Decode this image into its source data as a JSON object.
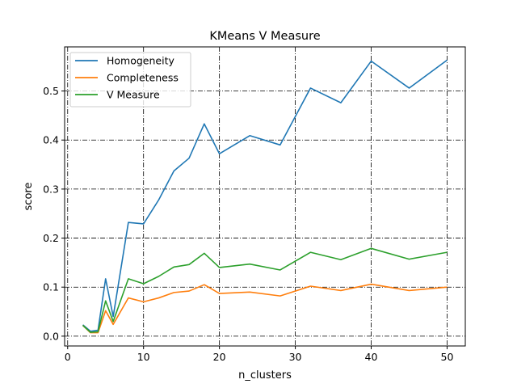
{
  "chart_data": {
    "type": "line",
    "title": "KMeans V Measure",
    "xlabel": "n_clusters",
    "ylabel": "score",
    "xlim": [
      -0.4,
      52.4
    ],
    "ylim": [
      -0.02,
      0.59
    ],
    "xticks": [
      0,
      10,
      20,
      30,
      40,
      50
    ],
    "yticks": [
      0.0,
      0.1,
      0.2,
      0.3,
      0.4,
      0.5
    ],
    "xtick_labels": [
      "0",
      "10",
      "20",
      "30",
      "40",
      "50"
    ],
    "ytick_labels": [
      "0.0",
      "0.1",
      "0.2",
      "0.3",
      "0.4",
      "0.5"
    ],
    "grid": true,
    "legend_position": "top-left",
    "x": [
      2,
      3,
      4,
      5,
      6,
      8,
      10,
      12,
      14,
      16,
      18,
      20,
      24,
      28,
      32,
      36,
      40,
      45,
      50
    ],
    "series": [
      {
        "name": "Homogeneity",
        "color": "#1f77b4",
        "values": [
          0.023,
          0.01,
          0.012,
          0.117,
          0.04,
          0.232,
          0.229,
          0.278,
          0.337,
          0.363,
          0.433,
          0.372,
          0.409,
          0.39,
          0.506,
          0.476,
          0.561,
          0.506,
          0.563
        ]
      },
      {
        "name": "Completeness",
        "color": "#ff7f0e",
        "values": [
          0.022,
          0.007,
          0.007,
          0.052,
          0.024,
          0.078,
          0.07,
          0.078,
          0.089,
          0.092,
          0.105,
          0.087,
          0.09,
          0.082,
          0.102,
          0.093,
          0.106,
          0.093,
          0.1
        ]
      },
      {
        "name": "V Measure",
        "color": "#2ca02c",
        "values": [
          0.022,
          0.008,
          0.009,
          0.072,
          0.03,
          0.117,
          0.107,
          0.122,
          0.141,
          0.146,
          0.169,
          0.14,
          0.147,
          0.135,
          0.171,
          0.156,
          0.179,
          0.157,
          0.171
        ]
      }
    ]
  }
}
